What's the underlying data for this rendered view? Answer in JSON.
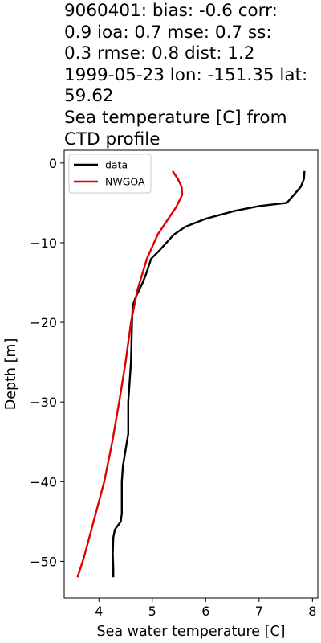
{
  "title_lines": [
    "9060401: bias: -0.6  corr:",
    "0.9  ioa: 0.7  mse: 0.7  ss:",
    "0.3  rmse: 0.8  dist: 1.2",
    "1999-05-23 lon: -151.35 lat:",
    "59.62",
    "Sea temperature [C] from",
    "CTD profile"
  ],
  "chart_data": {
    "type": "line",
    "xlabel": "Sea water temperature [C]",
    "ylabel": "Depth [m]",
    "xlim": [
      3.35,
      8.1
    ],
    "ylim": [
      -54.6,
      1.6
    ],
    "xticks": [
      4,
      5,
      6,
      7,
      8
    ],
    "yticks": [
      0,
      -10,
      -20,
      -30,
      -40,
      -50
    ],
    "grid": false,
    "legend_position": "upper left",
    "series": [
      {
        "name": "data",
        "color": "#000000",
        "points": [
          [
            7.85,
            -1
          ],
          [
            7.84,
            -2
          ],
          [
            7.78,
            -3
          ],
          [
            7.52,
            -5
          ],
          [
            7.0,
            -5.4
          ],
          [
            6.55,
            -6.0
          ],
          [
            6.0,
            -7.0
          ],
          [
            5.62,
            -8.0
          ],
          [
            5.4,
            -9.0
          ],
          [
            5.13,
            -11.0
          ],
          [
            4.98,
            -12.0
          ],
          [
            4.88,
            -14.0
          ],
          [
            4.82,
            -15.0
          ],
          [
            4.75,
            -16.0
          ],
          [
            4.68,
            -17.0
          ],
          [
            4.63,
            -18.0
          ],
          [
            4.62,
            -20.0
          ],
          [
            4.6,
            -25.0
          ],
          [
            4.55,
            -30.0
          ],
          [
            4.55,
            -34.0
          ],
          [
            4.5,
            -36.0
          ],
          [
            4.45,
            -38.0
          ],
          [
            4.43,
            -40.0
          ],
          [
            4.43,
            -44.0
          ],
          [
            4.41,
            -45.0
          ],
          [
            4.3,
            -46.0
          ],
          [
            4.27,
            -47.0
          ],
          [
            4.26,
            -49.0
          ],
          [
            4.27,
            -51.0
          ],
          [
            4.27,
            -52.0
          ]
        ]
      },
      {
        "name": "NWGOA",
        "color": "#e00000",
        "points": [
          [
            5.38,
            -1
          ],
          [
            5.48,
            -2
          ],
          [
            5.55,
            -3
          ],
          [
            5.56,
            -4
          ],
          [
            5.45,
            -5.5
          ],
          [
            5.3,
            -7
          ],
          [
            5.1,
            -9
          ],
          [
            4.9,
            -12
          ],
          [
            4.72,
            -16
          ],
          [
            4.6,
            -20
          ],
          [
            4.5,
            -25
          ],
          [
            4.38,
            -30
          ],
          [
            4.25,
            -35
          ],
          [
            4.1,
            -40
          ],
          [
            3.9,
            -45
          ],
          [
            3.72,
            -49.5
          ],
          [
            3.6,
            -52
          ]
        ]
      }
    ]
  }
}
